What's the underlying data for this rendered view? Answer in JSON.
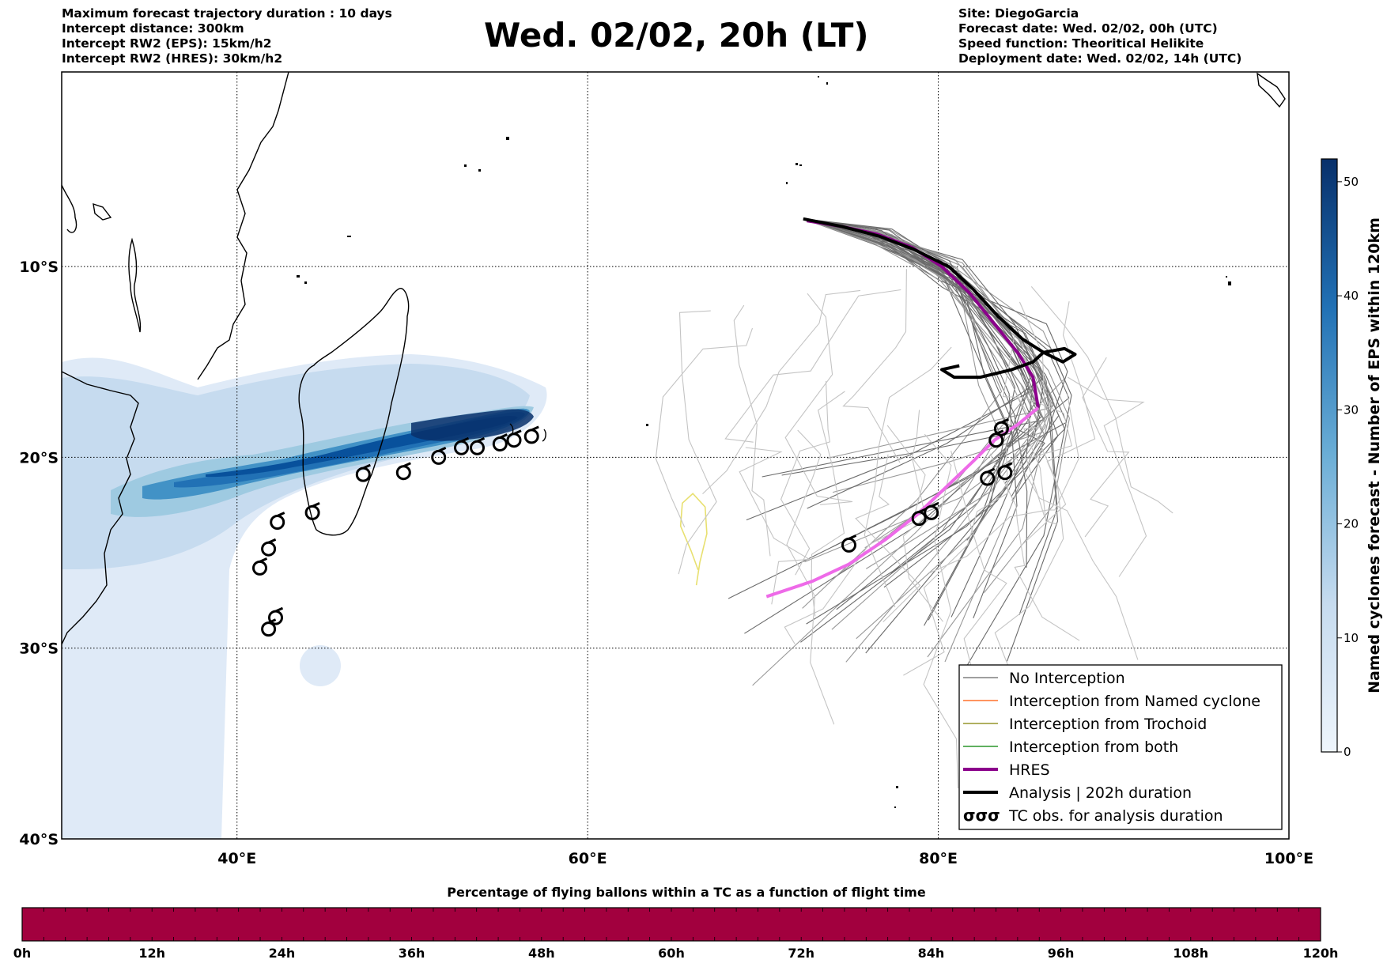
{
  "header": {
    "info_left": [
      "Maximum forecast trajectory duration : 10 days",
      "Intercept distance: 300km",
      "Intercept RW2 (EPS):  15km/h2",
      "Intercept RW2 (HRES): 30km/h2"
    ],
    "title": "Wed. 02/02, 20h (LT)",
    "info_right": [
      "Site: DiegoGarcia",
      "Forecast date: Wed. 02/02, 00h (UTC)",
      "Speed function: Theoritical Helikite",
      "Deployment date: Wed. 02/02, 14h (UTC)"
    ]
  },
  "map": {
    "lon_range": [
      30,
      100
    ],
    "lat_range": [
      -40,
      0.2
    ],
    "lat_ticks": [
      {
        "lat": -10,
        "label": "10°S"
      },
      {
        "lat": -20,
        "label": "20°S"
      },
      {
        "lat": -30,
        "label": "30°S"
      },
      {
        "lat": -40,
        "label": "40°S"
      }
    ],
    "lon_ticks": [
      {
        "lon": 40,
        "label": "40°E"
      },
      {
        "lon": 60,
        "label": "60°E"
      },
      {
        "lon": 80,
        "label": "80°E"
      },
      {
        "lon": 100,
        "label": "100°E"
      }
    ],
    "colors": {
      "no_interception": "#666666",
      "named_cyclone": "#ff5500",
      "trochoid": "#808000",
      "both": "#008000",
      "hres": "#8b008b",
      "hres_obs": "#ee6ae8",
      "analysis": "#000000",
      "trochoid_path": "#e8e070"
    },
    "legend": [
      {
        "label": "No Interception",
        "color": "#666666",
        "style": "thin"
      },
      {
        "label": "Interception from Named cyclone",
        "color": "#ff5500",
        "style": "thin"
      },
      {
        "label": "Interception from Trochoid",
        "color": "#808000",
        "style": "thin"
      },
      {
        "label": "Interception from both",
        "color": "#008000",
        "style": "thin"
      },
      {
        "label": "HRES",
        "color": "#8b008b",
        "style": "thick"
      },
      {
        "label": "Analysis | 202h duration",
        "color": "#000000",
        "style": "thick"
      },
      {
        "label": "TC obs. for analysis duration",
        "color": "#000000",
        "style": "tc-icons",
        "icon": "σσσ"
      }
    ],
    "tc_obs": [
      [
        41.3,
        -25.8
      ],
      [
        41.8,
        -24.8
      ],
      [
        42.3,
        -23.4
      ],
      [
        41.8,
        -29.0
      ],
      [
        42.2,
        -28.4
      ],
      [
        44.3,
        -22.9
      ],
      [
        47.2,
        -20.9
      ],
      [
        49.5,
        -20.8
      ],
      [
        51.5,
        -20.0
      ],
      [
        52.8,
        -19.5
      ],
      [
        53.7,
        -19.5
      ],
      [
        55.0,
        -19.3
      ],
      [
        55.8,
        -19.1
      ],
      [
        56.8,
        -18.9
      ],
      [
        74.9,
        -24.6
      ],
      [
        78.9,
        -23.2
      ],
      [
        79.6,
        -22.9
      ],
      [
        82.8,
        -21.1
      ],
      [
        83.8,
        -20.8
      ],
      [
        83.3,
        -19.1
      ],
      [
        83.6,
        -18.5
      ]
    ],
    "hres_track": [
      [
        72.5,
        -7.6
      ],
      [
        74.5,
        -7.9
      ],
      [
        76.5,
        -8.3
      ],
      [
        78.5,
        -9.0
      ],
      [
        80.2,
        -10.0
      ],
      [
        81.8,
        -11.4
      ],
      [
        83.2,
        -13.0
      ],
      [
        84.6,
        -14.6
      ],
      [
        85.4,
        -15.8
      ],
      [
        85.7,
        -17.4
      ],
      [
        84.5,
        -18.3
      ],
      [
        83.2,
        -19.1
      ],
      [
        82.0,
        -20.2
      ],
      [
        80.4,
        -21.6
      ],
      [
        78.8,
        -23.0
      ],
      [
        77.0,
        -24.3
      ],
      [
        74.9,
        -25.6
      ],
      [
        72.8,
        -26.5
      ],
      [
        70.2,
        -27.3
      ]
    ],
    "hres_obs_from_index": 9,
    "analysis_track": [
      [
        72.3,
        -7.5
      ],
      [
        74.5,
        -7.9
      ],
      [
        76.6,
        -8.4
      ],
      [
        78.6,
        -9.1
      ],
      [
        80.6,
        -10.0
      ],
      [
        82.0,
        -11.2
      ],
      [
        83.4,
        -12.6
      ],
      [
        84.8,
        -13.8
      ],
      [
        86.0,
        -14.5
      ],
      [
        87.2,
        -14.3
      ],
      [
        87.8,
        -14.6
      ],
      [
        87.1,
        -15.0
      ],
      [
        86.0,
        -14.5
      ],
      [
        85.4,
        -15.0
      ],
      [
        84.2,
        -15.4
      ],
      [
        82.4,
        -15.8
      ],
      [
        80.9,
        -15.8
      ],
      [
        80.2,
        -15.4
      ],
      [
        81.2,
        -15.2
      ]
    ]
  },
  "colorbar": {
    "label": "Named cyclones forecast - Number of EPS within 120km",
    "range": [
      0,
      52
    ],
    "ticks": [
      "0",
      "10",
      "20",
      "30",
      "40",
      "50"
    ],
    "color_low": "#e3eef9",
    "color_high": "#08306b"
  },
  "time_bar": {
    "title": "Percentage of flying ballons within a TC as a function of flight time",
    "color": "#a2003e",
    "ticks": [
      "0h",
      "12h",
      "24h",
      "36h",
      "48h",
      "60h",
      "72h",
      "84h",
      "96h",
      "108h",
      "120h"
    ]
  }
}
